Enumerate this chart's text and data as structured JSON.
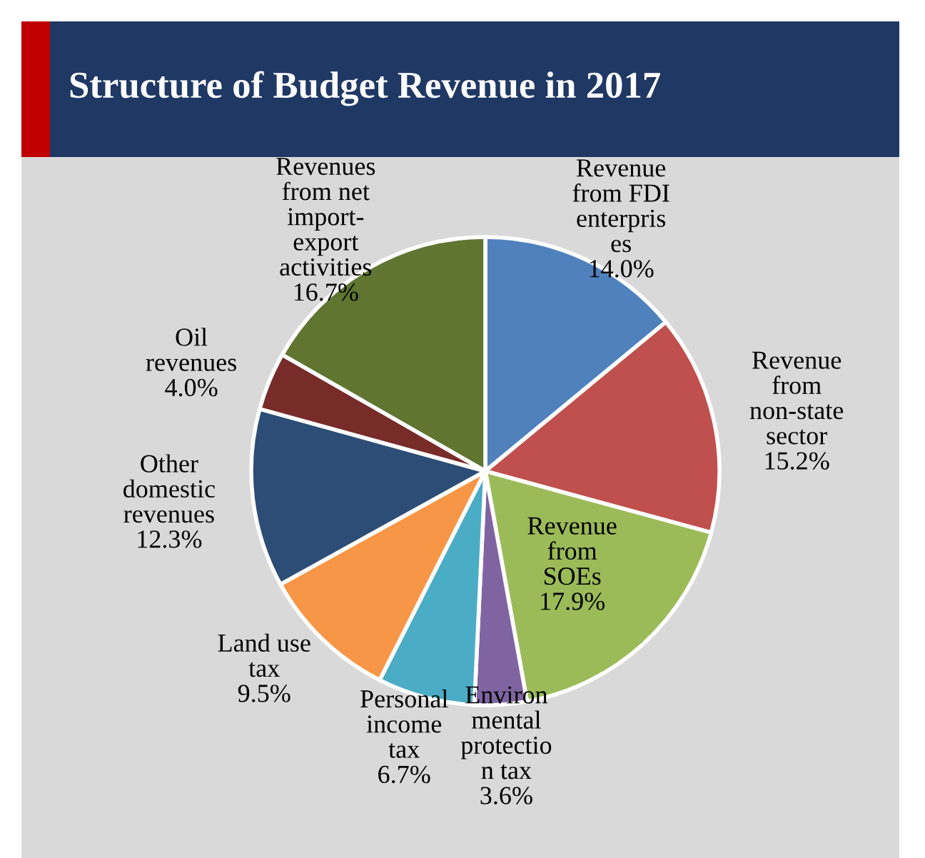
{
  "chart_data": {
    "type": "pie",
    "title": "Structure of Budget Revenue in 2017",
    "categories": [
      "Revenue\nfrom FDI\nenterpris\nes",
      "Revenue\nfrom\nnon-state\nsector",
      "Revenue\nfrom\nSOEs",
      "Environ\nmental\nprotectio\nn tax",
      "Personal\nincome\ntax",
      "Land use\ntax",
      "Other\ndomestic\nrevenues",
      "Oil\nrevenues",
      "Revenues\nfrom net\nimport-\nexport\nactivities"
    ],
    "values": [
      14.0,
      15.2,
      17.9,
      3.6,
      6.7,
      9.5,
      12.3,
      4.0,
      16.7
    ],
    "value_labels": [
      "14.0%",
      "15.2%",
      "17.9%",
      "3.6%",
      "6.7%",
      "9.5%",
      "12.3%",
      "4.0%",
      "16.7%"
    ],
    "colors": [
      "#4f81bd",
      "#c0504d",
      "#9bbb59",
      "#8064a2",
      "#4bacc6",
      "#f79646",
      "#2c4d75",
      "#772c2a",
      "#5f7530"
    ]
  }
}
